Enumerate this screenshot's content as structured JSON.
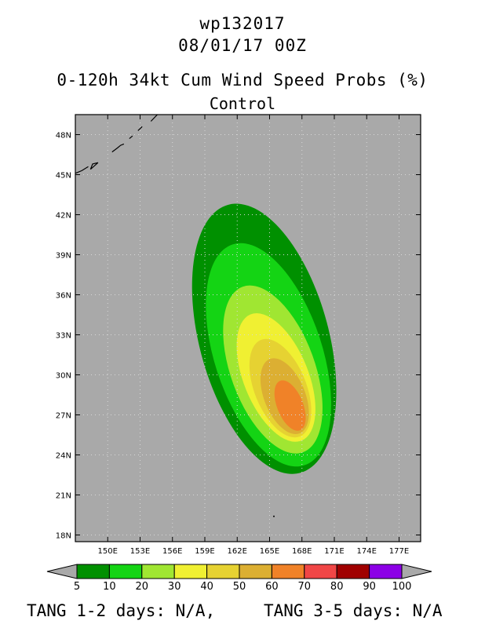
{
  "header": {
    "storm_id": "wp132017",
    "datetime": "08/01/17 00Z",
    "product": "0-120h 34kt Cum Wind Speed Probs (%)",
    "run": "Control"
  },
  "footer": {
    "tang_1_2": "TANG 1-2 days:  N/A,",
    "tang_3_5": "TANG 3-5 days:  N/A"
  },
  "colors": {
    "background": "#a9a9a9",
    "coast": "#000000"
  },
  "chart_data": {
    "type": "heatmap",
    "title": "0-120h 34kt Cum Wind Speed Probs (%)",
    "xlim": [
      147,
      179
    ],
    "ylim": [
      17.5,
      49.5
    ],
    "x_ticks": [
      150,
      153,
      156,
      159,
      162,
      165,
      168,
      171,
      174,
      177
    ],
    "x_tick_labels": [
      "150E",
      "153E",
      "156E",
      "159E",
      "162E",
      "165E",
      "168E",
      "171E",
      "174E",
      "177E"
    ],
    "y_ticks": [
      18,
      21,
      24,
      27,
      30,
      33,
      36,
      39,
      42,
      45,
      48
    ],
    "y_tick_labels": [
      "18N",
      "21N",
      "24N",
      "27N",
      "30N",
      "33N",
      "36N",
      "39N",
      "42N",
      "45N",
      "48N"
    ],
    "grid": true,
    "colorbar": {
      "levels": [
        5,
        10,
        20,
        30,
        40,
        50,
        60,
        70,
        80,
        90,
        100
      ],
      "level_labels": [
        "5",
        "10",
        "20",
        "30",
        "40",
        "50",
        "60",
        "70",
        "80",
        "90",
        "100"
      ],
      "colors": [
        "#009000",
        "#14d414",
        "#a0e632",
        "#f0f032",
        "#e6d232",
        "#dcaf32",
        "#f08228",
        "#f04646",
        "#a00000",
        "#8c00e6"
      ]
    },
    "contours": [
      {
        "level": 5,
        "color": "#009000",
        "center_lon": 164.5,
        "center_lat": 32.7,
        "semi_major_deg": 10.4,
        "semi_minor_deg": 6.0,
        "rotation_deg": -15
      },
      {
        "level": 10,
        "color": "#14d414",
        "center_lon": 164.9,
        "center_lat": 31.5,
        "semi_major_deg": 8.7,
        "semi_minor_deg": 5.0,
        "rotation_deg": -18
      },
      {
        "level": 20,
        "color": "#a0e632",
        "center_lon": 165.3,
        "center_lat": 30.4,
        "semi_major_deg": 6.6,
        "semi_minor_deg": 3.9,
        "rotation_deg": -20
      },
      {
        "level": 30,
        "color": "#f0f032",
        "center_lon": 165.6,
        "center_lat": 29.8,
        "semi_major_deg": 5.1,
        "semi_minor_deg": 3.0,
        "rotation_deg": -22
      },
      {
        "level": 40,
        "color": "#e6d232",
        "center_lon": 166.0,
        "center_lat": 29.0,
        "semi_major_deg": 3.9,
        "semi_minor_deg": 2.4,
        "rotation_deg": -22
      },
      {
        "level": 50,
        "color": "#dcaf32",
        "center_lon": 166.4,
        "center_lat": 28.4,
        "semi_major_deg": 3.0,
        "semi_minor_deg": 1.9,
        "rotation_deg": -22
      },
      {
        "level": 60,
        "color": "#f08228",
        "center_lon": 166.9,
        "center_lat": 27.7,
        "semi_major_deg": 2.0,
        "semi_minor_deg": 1.2,
        "rotation_deg": -22
      }
    ],
    "coastline": [
      [
        [
          147.0,
          45.1
        ],
        [
          147.6,
          45.3
        ],
        [
          148.2,
          45.6
        ]
      ],
      [
        [
          148.4,
          45.4
        ],
        [
          149.1,
          45.9
        ],
        [
          148.6,
          45.8
        ],
        [
          148.4,
          45.4
        ]
      ],
      [
        [
          150.4,
          46.7
        ],
        [
          150.9,
          47.0
        ],
        [
          151.2,
          47.2
        ],
        [
          151.5,
          47.3
        ]
      ],
      [
        [
          152.0,
          47.7
        ],
        [
          152.3,
          47.9
        ]
      ],
      [
        [
          152.8,
          48.3
        ],
        [
          153.2,
          48.6
        ]
      ],
      [
        [
          154.0,
          49.0
        ],
        [
          154.6,
          49.5
        ]
      ]
    ],
    "islands": [
      [
        165.4,
        19.4
      ]
    ]
  }
}
